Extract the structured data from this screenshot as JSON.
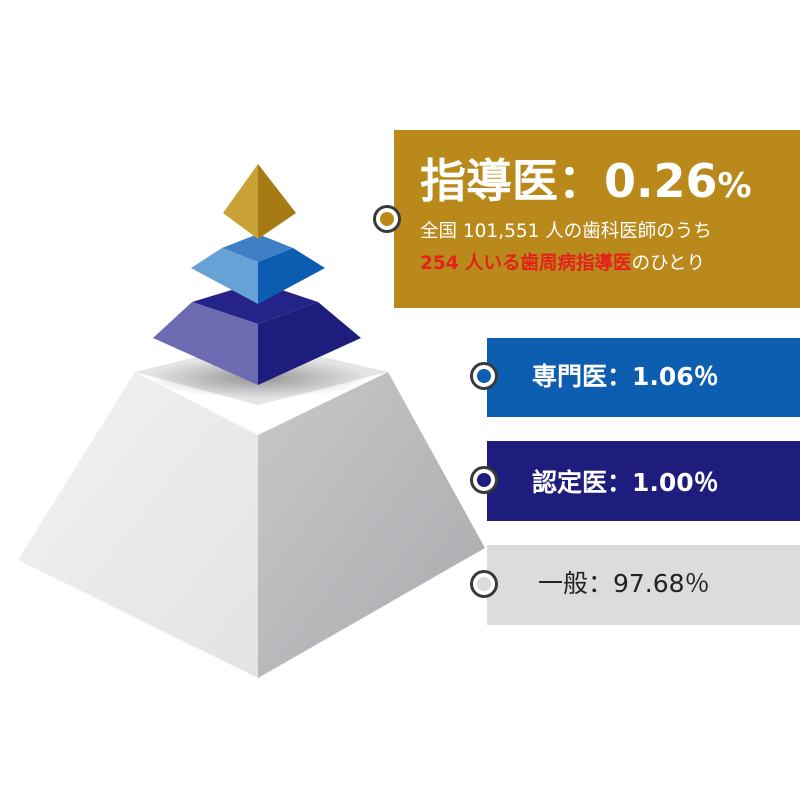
{
  "tiers": {
    "top": {
      "title": "指導医：0.26",
      "percent_sign": "%",
      "value_percent": 0.26,
      "line1": "全国 101,551 人の歯科医師のうち",
      "line2_highlight": "254 人いる歯周病指導医",
      "line2_rest": "のひとり",
      "color": "#b98a1b",
      "highlight_color": "#e3231b"
    },
    "specialist": {
      "label": "専門医：1.06％",
      "value_percent": 1.06,
      "color": "#0d5db1"
    },
    "certified": {
      "label": "認定医：1.00％",
      "value_percent": 1.0,
      "color": "#1e1d7d"
    },
    "general": {
      "label": "一般：97.68％",
      "value_percent": 97.68,
      "color": "#dcdcdc"
    }
  }
}
